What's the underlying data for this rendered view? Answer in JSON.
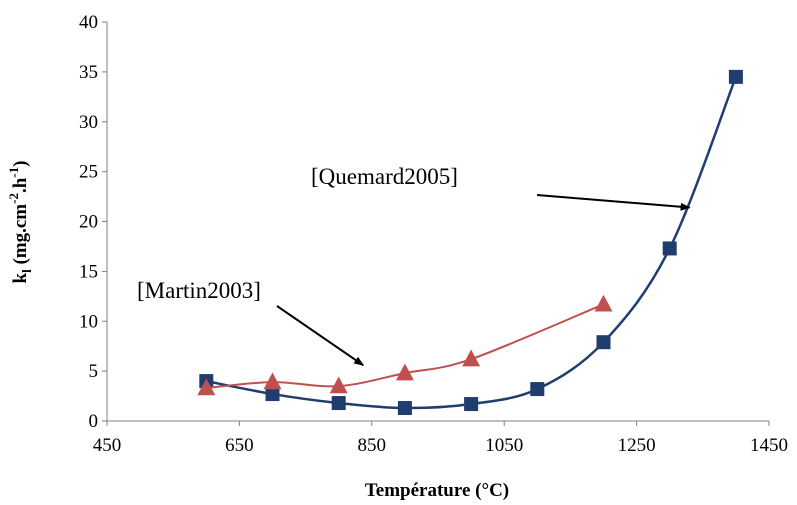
{
  "chart_data": {
    "type": "scatter",
    "xlabel": "Température (°C)",
    "ylabel": {
      "main": "k",
      "sub": "l",
      "units_a": " (mg.cm",
      "sup1": "-2",
      "units_b": ".h",
      "sup2": "-1",
      "units_c": ")"
    },
    "xlim": [
      450,
      1450
    ],
    "ylim": [
      0,
      40
    ],
    "x_ticks": [
      "450",
      "650",
      "850",
      "1050",
      "1250",
      "1450"
    ],
    "y_ticks": [
      "0",
      "5",
      "10",
      "15",
      "20",
      "25",
      "30",
      "35",
      "40"
    ],
    "grid": false,
    "legend": "none",
    "series": [
      {
        "marker": "square",
        "color": "#1f3d6e",
        "x": [
          600,
          700,
          800,
          900,
          1000,
          1100,
          1200,
          1300,
          1400
        ],
        "y": [
          4.0,
          2.7,
          1.8,
          1.3,
          1.7,
          3.2,
          7.9,
          17.3,
          34.5
        ]
      },
      {
        "marker": "triangle",
        "color": "#c0504d",
        "x": [
          600,
          700,
          800,
          900,
          1000,
          1200
        ],
        "y": [
          3.3,
          3.9,
          3.5,
          4.8,
          6.2,
          11.7
        ]
      }
    ],
    "annotations": [
      {
        "text": "[Quemard2005]",
        "arrow_to": [
          1330,
          21.4
        ]
      },
      {
        "text": "[Martin2003]",
        "arrow_to": [
          837,
          5.6
        ]
      }
    ]
  }
}
